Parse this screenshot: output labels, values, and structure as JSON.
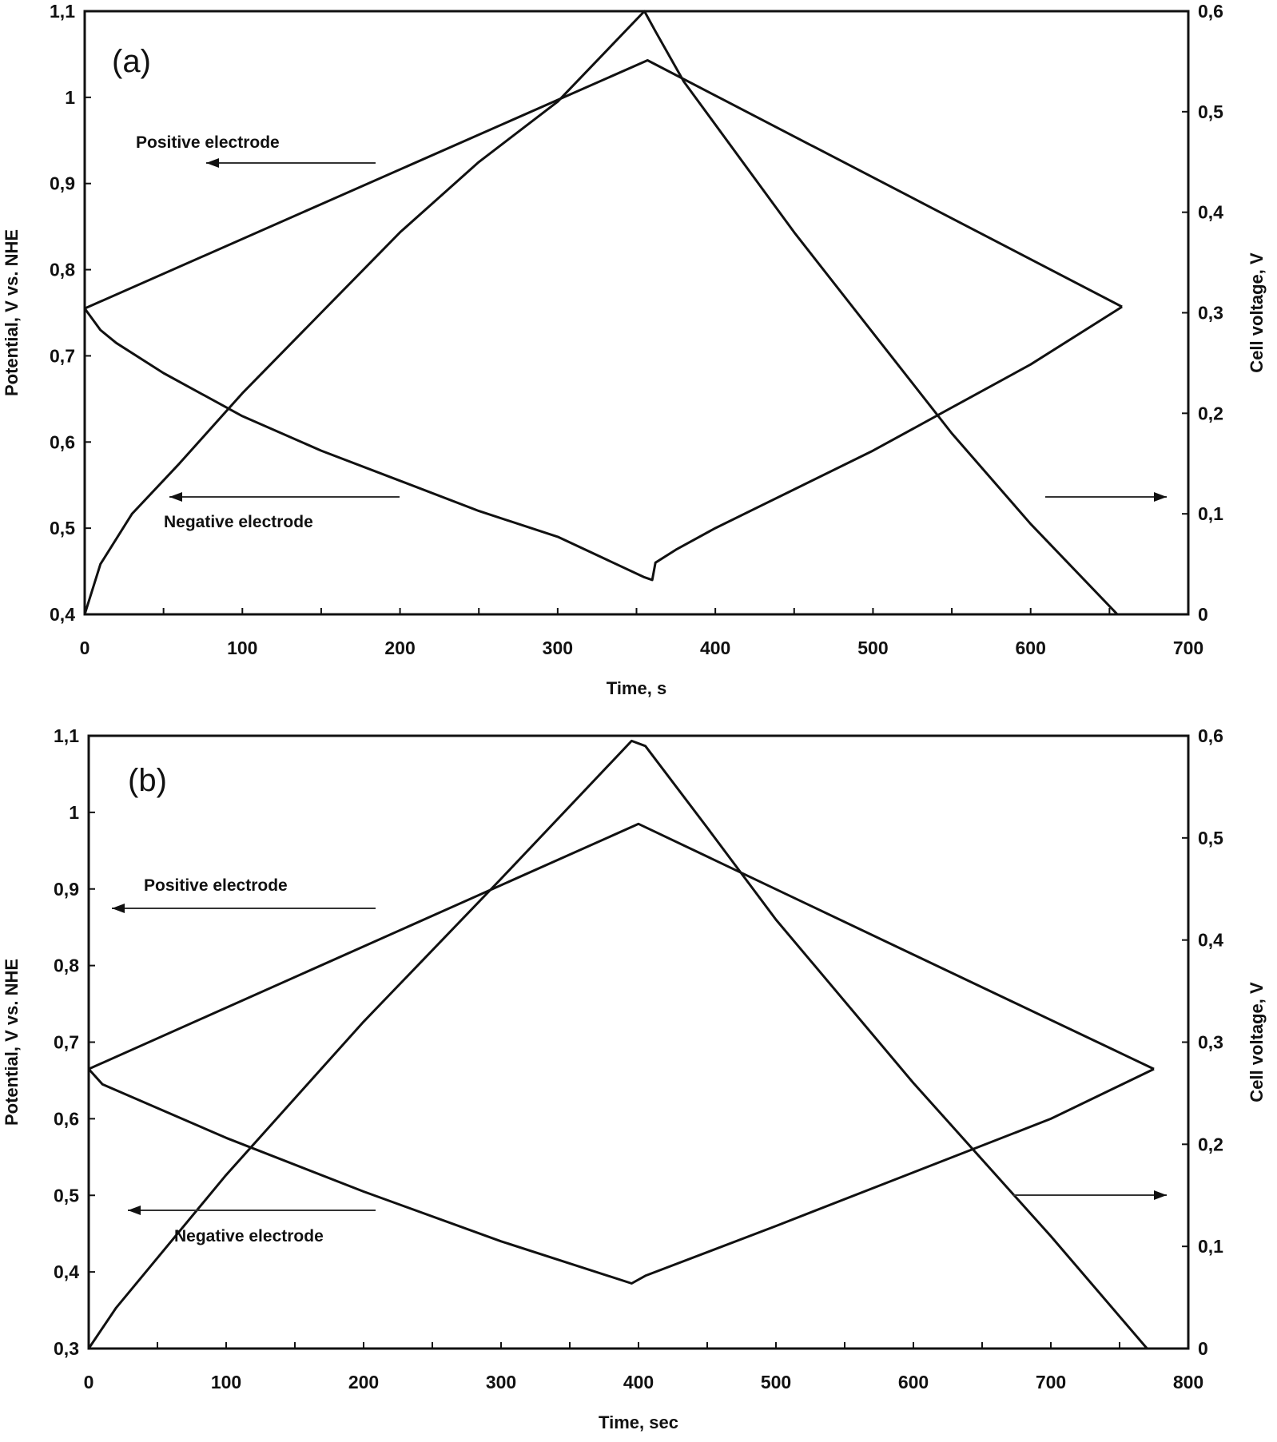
{
  "chart_data": [
    {
      "type": "line",
      "panel_label": "(a)",
      "xlabel": "Time, s",
      "ylabel": "Potential, V vs. NHE",
      "y2label": "Cell voltage, V",
      "xlim": [
        0,
        700
      ],
      "ylim": [
        0.4,
        1.1
      ],
      "y2lim": [
        0,
        0.6
      ],
      "xticks": [
        "0",
        "100",
        "200",
        "300",
        "400",
        "500",
        "600",
        "700"
      ],
      "yticks": [
        "0,4",
        "0,5",
        "0,6",
        "0,7",
        "0,8",
        "0,9",
        "1",
        "1,1"
      ],
      "y2ticks": [
        "0",
        "0,1",
        "0,2",
        "0,3",
        "0,4",
        "0,5",
        "0,6"
      ],
      "grid": false,
      "annotations": [
        "Positive electrode",
        "Negative electrode"
      ],
      "series": [
        {
          "axis": "left",
          "x": [
            0,
            357,
            658
          ],
          "y": [
            0.755,
            1.043,
            0.757
          ]
        },
        {
          "axis": "left",
          "x": [
            0,
            10,
            20,
            50,
            100,
            150,
            200,
            250,
            300,
            355,
            360,
            362,
            375,
            400,
            450,
            500,
            550,
            600,
            658
          ],
          "y": [
            0.755,
            0.73,
            0.715,
            0.68,
            0.63,
            0.59,
            0.555,
            0.52,
            0.49,
            0.443,
            0.44,
            0.46,
            0.475,
            0.5,
            0.545,
            0.59,
            0.64,
            0.69,
            0.757
          ]
        },
        {
          "axis": "right",
          "x": [
            0,
            10,
            30,
            60,
            100,
            150,
            200,
            250,
            300,
            355,
            362,
            380,
            450,
            500,
            550,
            600,
            655
          ],
          "y": [
            0,
            0.05,
            0.1,
            0.15,
            0.22,
            0.3,
            0.38,
            0.45,
            0.51,
            0.6,
            0.58,
            0.53,
            0.38,
            0.28,
            0.18,
            0.09,
            0
          ]
        }
      ]
    },
    {
      "type": "line",
      "panel_label": "(b)",
      "xlabel": "Time, sec",
      "ylabel": "Potential, V vs. NHE",
      "y2label": "Cell voltage, V",
      "xlim": [
        0,
        800
      ],
      "ylim": [
        0.3,
        1.1
      ],
      "y2lim": [
        0,
        0.6
      ],
      "xticks": [
        "0",
        "100",
        "200",
        "300",
        "400",
        "500",
        "600",
        "700",
        "800"
      ],
      "yticks": [
        "0,3",
        "0,4",
        "0,5",
        "0,6",
        "0,7",
        "0,8",
        "0,9",
        "1",
        "1,1"
      ],
      "y2ticks": [
        "0",
        "0,1",
        "0,2",
        "0,3",
        "0,4",
        "0,5",
        "0,6"
      ],
      "grid": false,
      "annotations": [
        "Positive electrode",
        "Negative electrode"
      ],
      "series": [
        {
          "axis": "left",
          "x": [
            0,
            400,
            775
          ],
          "y": [
            0.665,
            0.985,
            0.665
          ]
        },
        {
          "axis": "left",
          "x": [
            0,
            10,
            100,
            200,
            300,
            395,
            405,
            500,
            600,
            700,
            775
          ],
          "y": [
            0.665,
            0.645,
            0.575,
            0.505,
            0.44,
            0.385,
            0.395,
            0.46,
            0.53,
            0.6,
            0.665
          ]
        },
        {
          "axis": "right",
          "x": [
            0,
            20,
            100,
            200,
            300,
            395,
            405,
            450,
            500,
            600,
            700,
            770
          ],
          "y": [
            0,
            0.04,
            0.17,
            0.32,
            0.46,
            0.595,
            0.59,
            0.51,
            0.42,
            0.26,
            0.11,
            0
          ]
        }
      ]
    }
  ]
}
